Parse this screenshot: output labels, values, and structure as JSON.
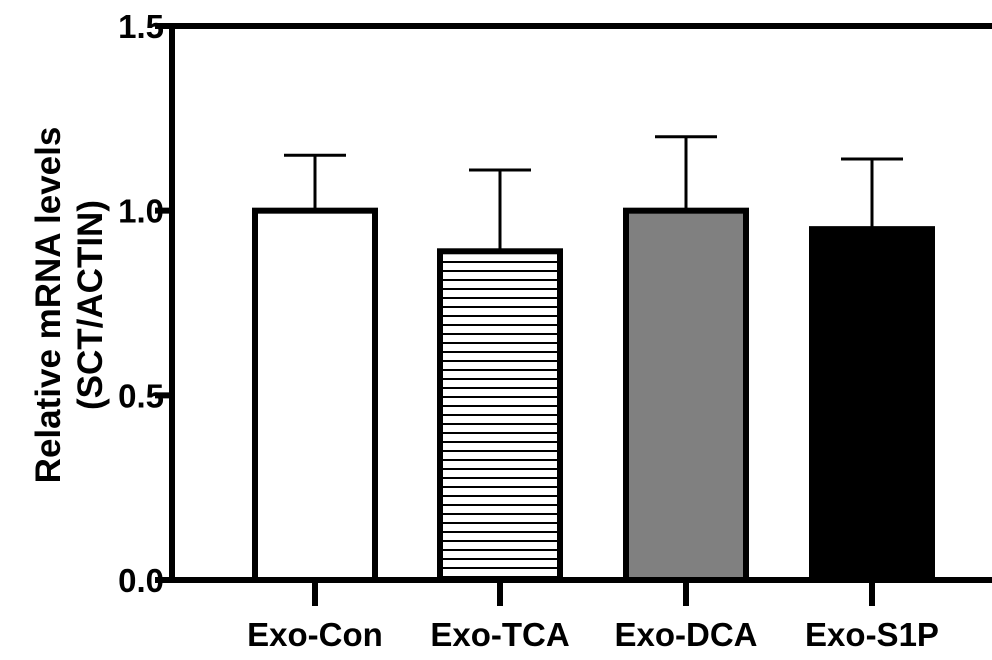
{
  "chart_data": {
    "type": "bar",
    "ylabel_line1": "Relative mRNA levels",
    "ylabel_line2": "(SCT/ACTIN)",
    "ylim": [
      0,
      1.5
    ],
    "yticks": [
      "0.0",
      "0.5",
      "1.0",
      "1.5"
    ],
    "categories": [
      "Exo-Con",
      "Exo-TCA",
      "Exo-DCA",
      "Exo-S1P"
    ],
    "values": [
      1.0,
      0.89,
      1.0,
      0.95
    ],
    "errors": [
      0.15,
      0.22,
      0.2,
      0.19
    ],
    "fills": [
      "white",
      "horizontal-stripes",
      "gray",
      "black"
    ],
    "colors": {
      "gray": "#808080",
      "black": "#000000",
      "white": "#ffffff"
    },
    "grid": false,
    "legend": "none"
  }
}
